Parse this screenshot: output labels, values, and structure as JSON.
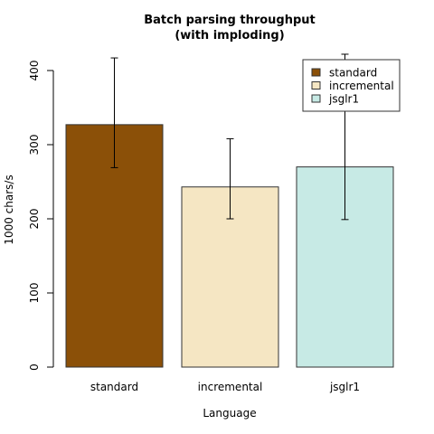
{
  "chart_data": {
    "type": "bar",
    "title_lines": [
      "Batch parsing throughput",
      "(with imploding)"
    ],
    "xlabel": "Language",
    "ylabel": "1000 chars/s",
    "categories": [
      "standard",
      "incremental",
      "jsglr1"
    ],
    "values": [
      327,
      243,
      270
    ],
    "error_low": [
      269,
      200,
      199
    ],
    "error_high": [
      417,
      308,
      422
    ],
    "colors": [
      "#8b5008",
      "#f5e6c3",
      "#c7eae5"
    ],
    "ylim": [
      0,
      420
    ],
    "yticks": [
      0,
      100,
      200,
      300,
      400
    ],
    "legend": {
      "position": "top-right",
      "entries": [
        "standard",
        "incremental",
        "jsglr1"
      ]
    },
    "grid": false
  }
}
